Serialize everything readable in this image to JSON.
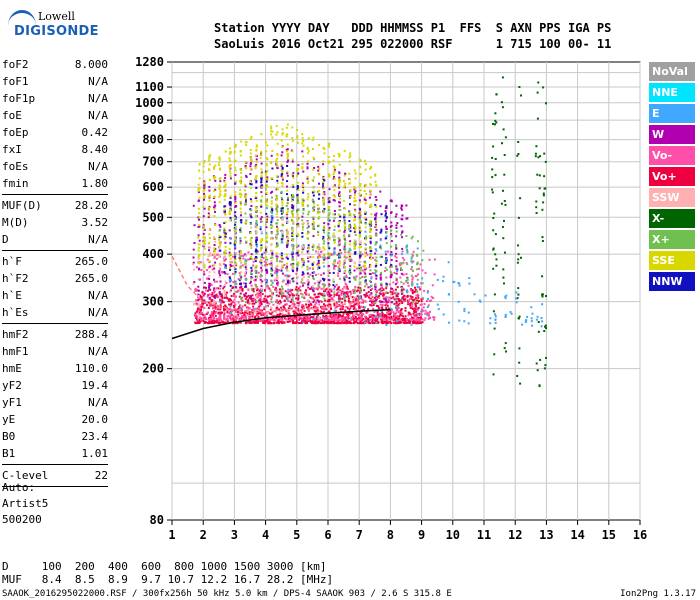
{
  "logo": {
    "line1": "Lowell",
    "line2": "DIGISONDE"
  },
  "header": {
    "line1": "Station YYYY DAY   DDD HHMMSS P1  FFS  S AXN PPS IGA PS",
    "line2": "SaoLuis 2016 Oct21 295 022000 RSF      1 715 100 00- 11"
  },
  "params": [
    {
      "label": "foF2",
      "value": "8.000"
    },
    {
      "label": "foF1",
      "value": "N/A"
    },
    {
      "label": "foF1p",
      "value": "N/A"
    },
    {
      "label": "foE",
      "value": "N/A"
    },
    {
      "label": "foEp",
      "value": "0.42"
    },
    {
      "label": "fxI",
      "value": "8.40"
    },
    {
      "label": "foEs",
      "value": "N/A"
    },
    {
      "label": "fmin",
      "value": "1.80"
    },
    {
      "sep": true
    },
    {
      "label": "MUF(D)",
      "value": "28.20"
    },
    {
      "label": "M(D)",
      "value": "3.52"
    },
    {
      "label": "D",
      "value": "N/A"
    },
    {
      "sep": true
    },
    {
      "label": "h`F",
      "value": "265.0"
    },
    {
      "label": "h`F2",
      "value": "265.0"
    },
    {
      "label": "h`E",
      "value": "N/A"
    },
    {
      "label": "h`Es",
      "value": "N/A"
    },
    {
      "sep": true
    },
    {
      "label": "hmF2",
      "value": "288.4"
    },
    {
      "label": "hmF1",
      "value": "N/A"
    },
    {
      "label": "hmE",
      "value": "110.0"
    },
    {
      "label": "yF2",
      "value": "19.4"
    },
    {
      "label": "yF1",
      "value": "N/A"
    },
    {
      "label": "yE",
      "value": "20.0"
    },
    {
      "label": "B0",
      "value": "23.4"
    },
    {
      "label": "B1",
      "value": "1.01"
    },
    {
      "sep": true
    },
    {
      "label": "C-level",
      "value": "22"
    },
    {
      "sep": true
    }
  ],
  "auto": {
    "line1": "Auto:",
    "line2": "Artist5",
    "line3": "500200"
  },
  "legend": [
    {
      "label": "NoVal",
      "bg": "#a0a0a0",
      "fg": "#ffffff"
    },
    {
      "label": "NNE",
      "bg": "#00e5ff",
      "fg": "#ffffff"
    },
    {
      "label": "E",
      "bg": "#40a8ff",
      "fg": "#ffffff"
    },
    {
      "label": "W",
      "bg": "#b000b0",
      "fg": "#ffffff"
    },
    {
      "label": "Vo-",
      "bg": "#ff4fa8",
      "fg": "#ffffff"
    },
    {
      "label": "Vo+",
      "bg": "#ee0040",
      "fg": "#ffffff"
    },
    {
      "label": "SSW",
      "bg": "#ffb0b0",
      "fg": "#ffffff"
    },
    {
      "label": "X-",
      "bg": "#006400",
      "fg": "#ffffff"
    },
    {
      "label": "X+",
      "bg": "#70c050",
      "fg": "#ffffff"
    },
    {
      "label": "SSE",
      "bg": "#d8d800",
      "fg": "#ffffff"
    },
    {
      "label": "NNW",
      "bg": "#1010c0",
      "fg": "#ffffff"
    }
  ],
  "dmuf": {
    "line1": "D     100  200  400  600  800 1000 1500 3000 [km]",
    "line2": "MUF   8.4  8.5  8.9  9.7 10.7 12.2 16.7 28.2 [MHz]"
  },
  "footer": "SAAOK_2016295022000.RSF / 300fx256h 50 kHz 5.0 km / DPS-4 SAAOK 903 / 2.6 S 315.8 E",
  "version": "Ion2Png 1.3.17",
  "chart_data": {
    "type": "scatter",
    "title": "",
    "xlabel": "",
    "ylabel": "",
    "xlim": [
      1,
      16
    ],
    "ylim": [
      80,
      1280
    ],
    "y_scale": "log",
    "x_ticks": [
      1,
      2,
      3,
      4,
      5,
      6,
      7,
      8,
      9,
      10,
      11,
      12,
      13,
      14,
      15,
      16
    ],
    "y_ticks": [
      80,
      200,
      300,
      400,
      500,
      600,
      700,
      800,
      900,
      1000,
      1100,
      1280
    ],
    "grid": true,
    "legend_position": "right",
    "series": [
      {
        "name": "Vo+",
        "color": "#ee0040",
        "region": {
          "f": [
            1.7,
            9.0
          ],
          "h": [
            265,
            330
          ]
        }
      },
      {
        "name": "Vo-",
        "color": "#ff4fa8",
        "region": {
          "f": [
            1.7,
            9.4
          ],
          "h": [
            270,
            410
          ]
        }
      },
      {
        "name": "W",
        "color": "#b000b0",
        "region": {
          "f": [
            1.7,
            8.5
          ],
          "h": [
            300,
            800
          ]
        }
      },
      {
        "name": "NNW",
        "color": "#1010c0",
        "region": {
          "f": [
            2.5,
            8.0
          ],
          "h": [
            330,
            700
          ]
        }
      },
      {
        "name": "SSE",
        "color": "#d8d800",
        "region": {
          "f": [
            1.8,
            7.5
          ],
          "h": [
            370,
            900
          ]
        }
      },
      {
        "name": "X+",
        "color": "#70c050",
        "region": {
          "f": [
            3.0,
            9.0
          ],
          "h": [
            300,
            600
          ]
        }
      },
      {
        "name": "X-",
        "color": "#006400",
        "region": {
          "f": [
            11.0,
            13.0
          ],
          "h": [
            180,
            1200
          ]
        }
      },
      {
        "name": "E",
        "color": "#40a8ff",
        "region": {
          "f": [
            2.5,
            13.0
          ],
          "h": [
            260,
            600
          ]
        }
      },
      {
        "name": "SSW",
        "color": "#ffb0b0",
        "region": {
          "f": [
            1.7,
            7.0
          ],
          "h": [
            270,
            520
          ]
        }
      }
    ],
    "extra_traces": [
      {
        "type": "profile",
        "color": "#ff8080",
        "x": [
          1.0,
          1.5,
          2.0,
          3.0,
          4.0,
          5.0,
          6.0,
          7.0,
          8.0
        ],
        "y": [
          395,
          330,
          300,
          285,
          282,
          285,
          290,
          300,
          310
        ]
      },
      {
        "type": "profile",
        "color": "#000000",
        "x": [
          1.0,
          2.0,
          3.0,
          4.0,
          5.0,
          6.0,
          7.0,
          8.0
        ],
        "y": [
          240,
          255,
          265,
          272,
          276,
          280,
          283,
          286
        ]
      }
    ]
  }
}
